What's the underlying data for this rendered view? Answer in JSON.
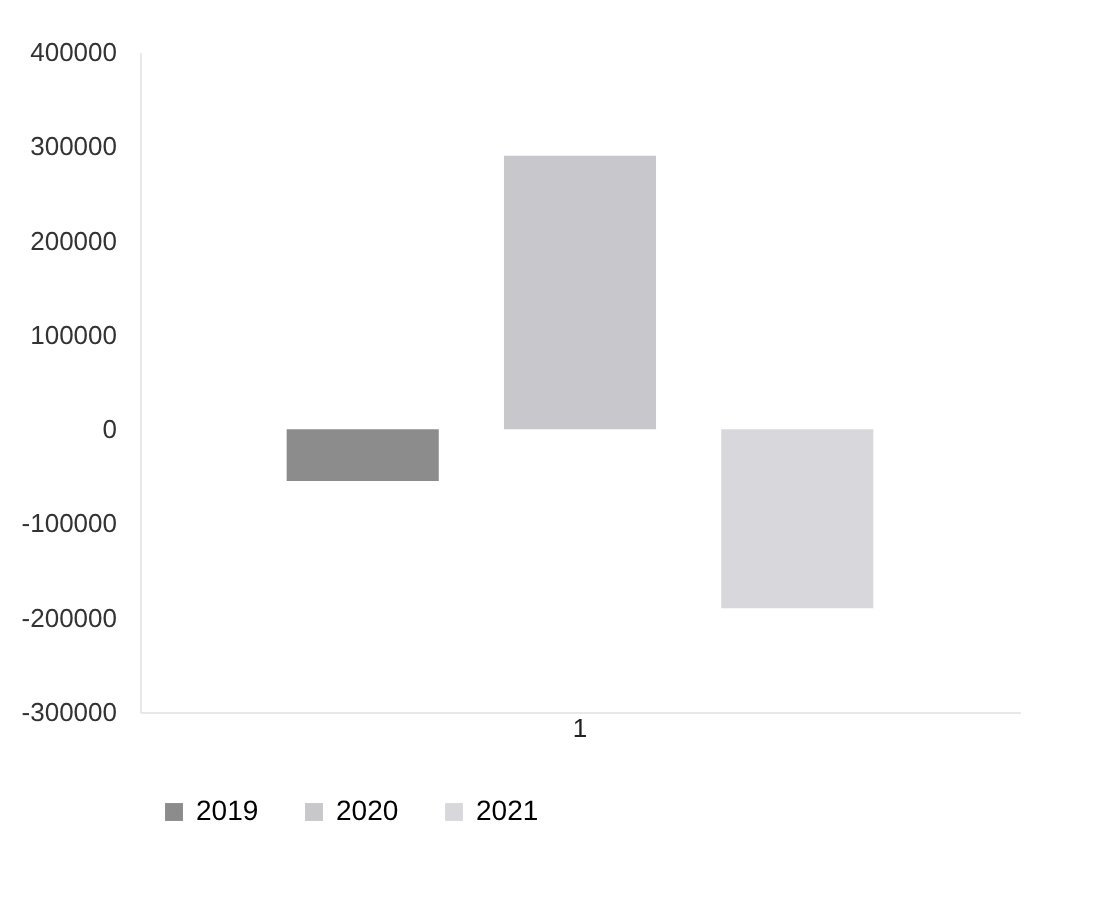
{
  "chart_data": {
    "type": "bar",
    "categories": [
      "1"
    ],
    "series": [
      {
        "name": "2019",
        "color": "#8c8c8c",
        "values": [
          -55000
        ]
      },
      {
        "name": "2020",
        "color": "#c8c8cc",
        "values": [
          290000
        ]
      },
      {
        "name": "2021",
        "color": "#d8d8dc",
        "values": [
          -190000
        ]
      }
    ],
    "ylim": [
      -300000,
      400000
    ],
    "yticks": [
      -300000,
      -200000,
      -100000,
      0,
      100000,
      200000,
      300000,
      400000
    ],
    "grid": false,
    "legend": "bottom"
  }
}
